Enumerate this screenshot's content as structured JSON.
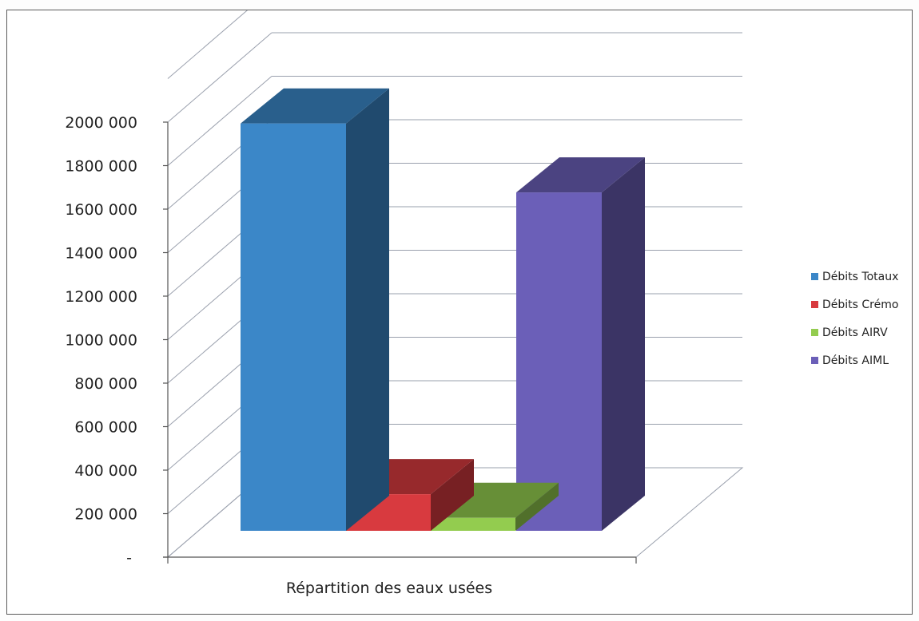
{
  "chart_data": {
    "type": "bar",
    "style": "3d-clustered-column",
    "categories": [
      "Répartition des eaux usées"
    ],
    "series": [
      {
        "name": "Débits Totaux",
        "values": [
          1890000
        ],
        "color": "#3b87c8"
      },
      {
        "name": "Débits Crémo",
        "values": [
          170000
        ],
        "color": "#d83a3f"
      },
      {
        "name": "Débits AIRV",
        "values": [
          60000
        ],
        "color": "#93cc4f"
      },
      {
        "name": "Débits AIML",
        "values": [
          1570000
        ],
        "color": "#6b5fb8"
      }
    ],
    "ylim": [
      0,
      2200000
    ],
    "yticks": [
      0,
      200000,
      400000,
      600000,
      800000,
      1000000,
      1200000,
      1400000,
      1600000,
      1800000,
      2000000
    ],
    "ytick_labels": [
      "-",
      "200 000",
      "400 000",
      "600 000",
      "800 000",
      "1000 000",
      "1200 000",
      "1400 000",
      "1600 000",
      "1800 000",
      "2000 000"
    ],
    "grid": true,
    "legend_position": "right",
    "title": "",
    "xlabel": "",
    "ylabel": ""
  }
}
